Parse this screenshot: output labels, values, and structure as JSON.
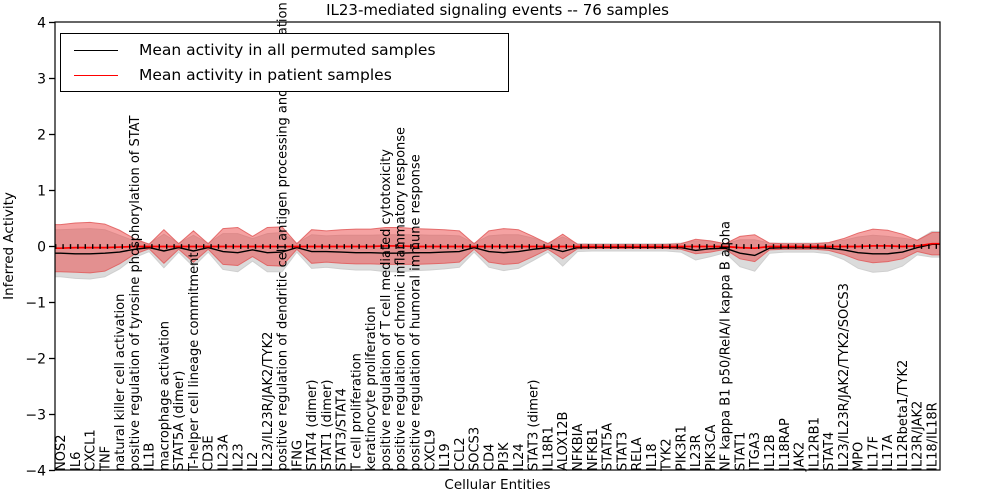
{
  "title": "IL23-mediated signaling events -- 76 samples",
  "legend": {
    "items": [
      {
        "label": "Mean activity in all permuted samples",
        "color": "#000000"
      },
      {
        "label": "Mean activity in patient samples",
        "color": "#ff0000"
      }
    ]
  },
  "axes": {
    "x_label": "Cellular Entities",
    "y_label": "Inferred Activity",
    "y_tick_labels": [
      "4",
      "3",
      "2",
      "1",
      "0",
      "−1",
      "−2",
      "−3",
      "−4"
    ],
    "y_tick_values": [
      4,
      3,
      2,
      1,
      0,
      -1,
      -2,
      -3,
      -4
    ]
  },
  "colors": {
    "patient_line": "#ff0000",
    "permuted_line": "#000000",
    "patient_band_fill": "rgba(236,70,70,0.5)",
    "patient_band_edge": "rgba(225,90,90,0.85)",
    "permuted_band_fill": "#dbdbdb",
    "permuted_band_edge": "#cfcfcf",
    "frame": "#000000"
  },
  "chart_data": {
    "type": "line",
    "title": "IL23-mediated signaling events -- 76 samples",
    "xlabel": "Cellular Entities",
    "ylabel": "Inferred Activity",
    "ylim": [
      -4,
      4
    ],
    "grid": false,
    "legend_position": "upper left",
    "categories": [
      "NOS2",
      "IL6",
      "CXCL1",
      "TNF",
      "natural killer cell activation",
      "positive regulation of tyrosine phosphorylation of STAT",
      "IL1B",
      "macrophage activation",
      "STAT5A (dimer)",
      "T-helper cell lineage commitment",
      "CD3E",
      "IL23A",
      "IL23",
      "IL2",
      "IL23/IL23R/JAK2/TYK2",
      "positive regulation of dendritic cell antigen processing and presentation",
      "IFNG",
      "STAT4 (dimer)",
      "STAT1 (dimer)",
      "STAT3/STAT4",
      "T cell proliferation",
      "keratinocyte proliferation",
      "positive regulation of T cell mediated cytotoxicity",
      "positive regulation of chronic inflammatory response",
      "positive regulation of humoral immune response",
      "CXCL9",
      "IL19",
      "CCL2",
      "SOCS3",
      "CD4",
      "PI3K",
      "IL24",
      "STAT3 (dimer)",
      "IL18R1",
      "ALOX12B",
      "NFKBIA",
      "NFKB1",
      "STAT5A",
      "STAT3",
      "RELA",
      "IL18",
      "TYK2",
      "PIK3R1",
      "IL23R",
      "PIK3CA",
      "NF kappa B1 p50/RelA/I kappa B alpha",
      "STAT1",
      "ITGA3",
      "IL12B",
      "IL18RAP",
      "JAK2",
      "IL12RB1",
      "STAT4",
      "IL23/IL23R/JAK2/TYK2/SOCS3",
      "MPO",
      "IL17F",
      "IL17A",
      "IL12Rbeta1/TYK2",
      "IL23R/JAK2",
      "IL18/IL18R"
    ],
    "series": [
      {
        "name": "Mean activity in all permuted samples",
        "values": [
          -0.12,
          -0.13,
          -0.13,
          -0.12,
          -0.1,
          -0.05,
          -0.02,
          -0.08,
          -0.02,
          -0.08,
          -0.02,
          -0.09,
          -0.11,
          -0.06,
          -0.11,
          -0.1,
          -0.02,
          -0.09,
          -0.09,
          -0.1,
          -0.11,
          -0.11,
          -0.12,
          -0.12,
          -0.11,
          -0.11,
          -0.1,
          -0.09,
          -0.02,
          -0.09,
          -0.11,
          -0.09,
          -0.05,
          -0.02,
          -0.09,
          -0.02,
          -0.015,
          -0.015,
          -0.015,
          -0.015,
          -0.015,
          -0.015,
          -0.02,
          -0.07,
          -0.04,
          -0.03,
          -0.12,
          -0.16,
          -0.03,
          -0.02,
          -0.02,
          -0.02,
          -0.03,
          -0.06,
          -0.11,
          -0.13,
          -0.13,
          -0.1,
          -0.02,
          0.04
        ]
      },
      {
        "name": "Mean activity in patient samples",
        "values": [
          -0.03,
          -0.02,
          -0.02,
          -0.02,
          -0.01,
          0,
          0,
          0,
          0,
          0,
          0,
          0,
          0,
          0,
          0,
          0,
          0,
          0,
          0,
          0,
          0,
          0,
          0.01,
          0.01,
          0,
          0,
          0,
          0,
          0,
          0,
          0,
          0,
          0,
          0,
          0,
          0,
          0,
          0,
          0,
          0,
          0,
          0,
          0,
          0,
          0,
          0,
          -0.02,
          -0.03,
          0,
          0,
          0,
          0,
          0,
          0,
          0,
          0.01,
          0.01,
          0,
          0.01,
          0.05
        ]
      },
      {
        "name": "permuted band half-width",
        "values": [
          0.42,
          0.44,
          0.45,
          0.42,
          0.3,
          0.15,
          0.07,
          0.3,
          0.08,
          0.28,
          0.08,
          0.32,
          0.34,
          0.2,
          0.34,
          0.35,
          0.08,
          0.3,
          0.28,
          0.3,
          0.31,
          0.31,
          0.33,
          0.33,
          0.32,
          0.31,
          0.3,
          0.28,
          0.08,
          0.28,
          0.32,
          0.3,
          0.2,
          0.08,
          0.26,
          0.07,
          0.065,
          0.065,
          0.065,
          0.065,
          0.065,
          0.065,
          0.08,
          0.17,
          0.14,
          0.08,
          0.24,
          0.28,
          0.09,
          0.08,
          0.08,
          0.08,
          0.1,
          0.17,
          0.28,
          0.33,
          0.31,
          0.25,
          0.13,
          0.23
        ]
      },
      {
        "name": "patient band half-width",
        "values": [
          0.42,
          0.44,
          0.45,
          0.42,
          0.3,
          0.14,
          0.04,
          0.3,
          0.05,
          0.28,
          0.05,
          0.32,
          0.34,
          0.18,
          0.34,
          0.35,
          0.05,
          0.3,
          0.28,
          0.3,
          0.31,
          0.31,
          0.33,
          0.33,
          0.32,
          0.31,
          0.3,
          0.28,
          0.05,
          0.28,
          0.32,
          0.3,
          0.18,
          0.05,
          0.22,
          0.04,
          0.035,
          0.035,
          0.035,
          0.035,
          0.035,
          0.035,
          0.05,
          0.13,
          0.1,
          0.05,
          0.2,
          0.24,
          0.06,
          0.05,
          0.05,
          0.05,
          0.07,
          0.14,
          0.24,
          0.3,
          0.28,
          0.22,
          0.1,
          0.2
        ]
      }
    ]
  }
}
